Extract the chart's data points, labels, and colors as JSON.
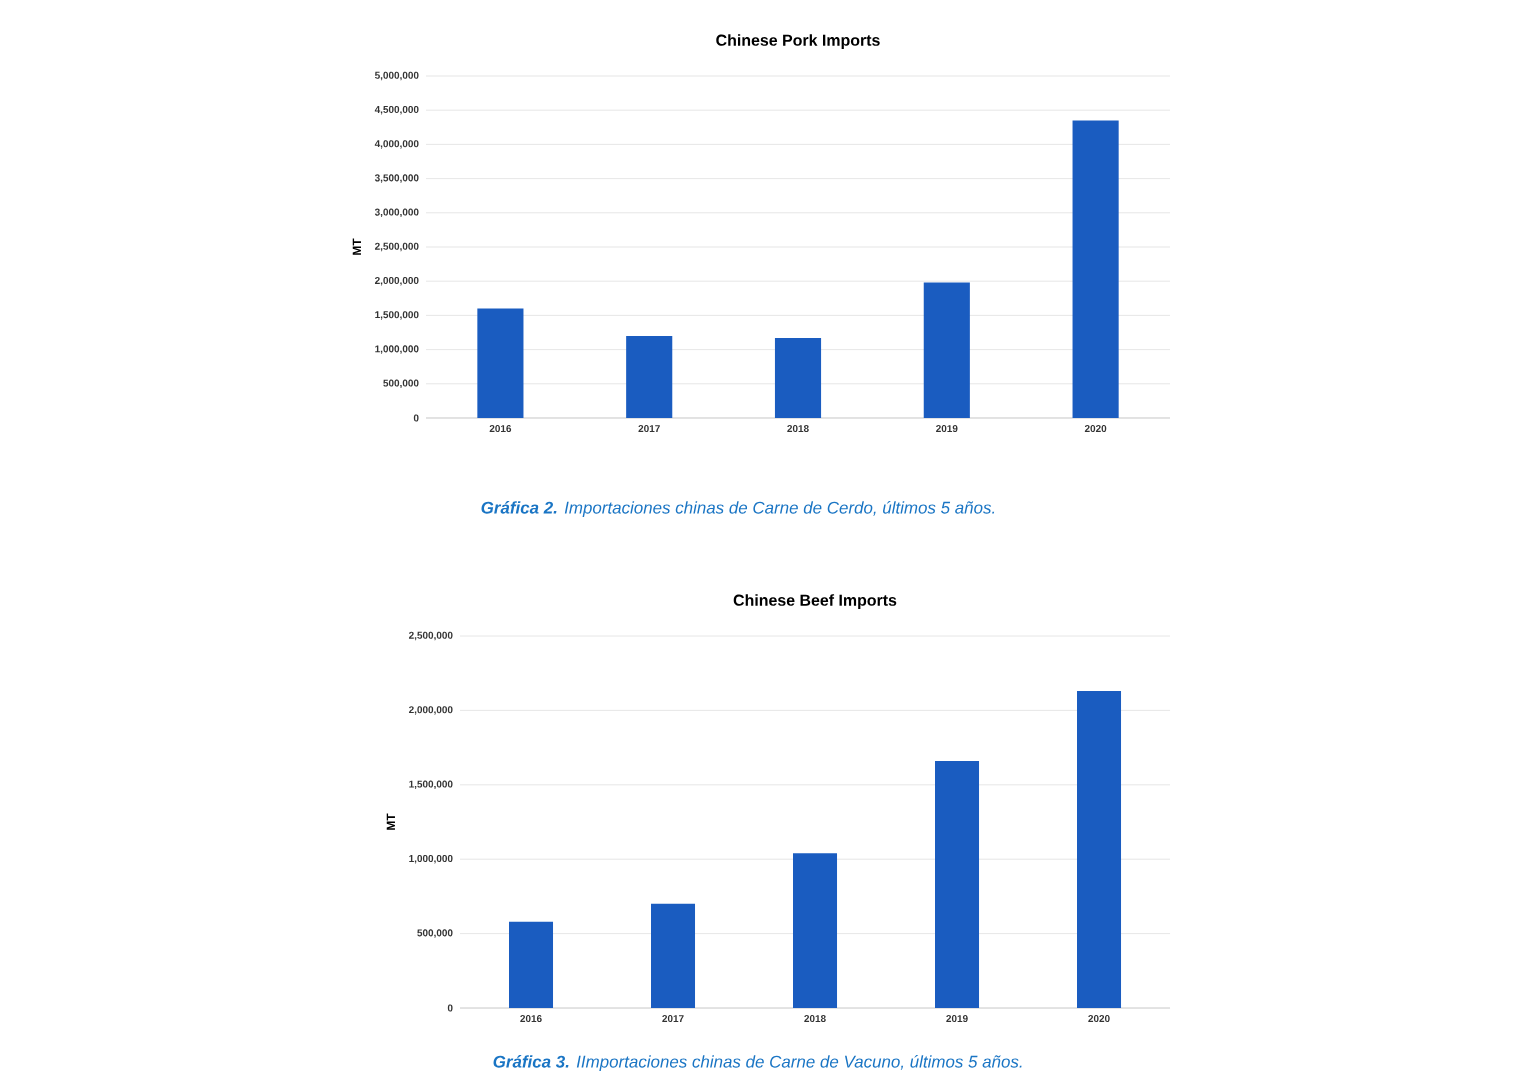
{
  "chart_data": [
    {
      "type": "bar",
      "title": "Chinese Pork Imports",
      "ylabel": "MT",
      "categories": [
        "2016",
        "2017",
        "2018",
        "2019",
        "2020"
      ],
      "values": [
        1600000,
        1200000,
        1170000,
        1980000,
        4350000
      ],
      "color": "#1a5cc0",
      "ylim": [
        0,
        5000000
      ],
      "yticks": [
        {
          "value": 0,
          "label": "0"
        },
        {
          "value": 500000,
          "label": "500,000"
        },
        {
          "value": 1000000,
          "label": "1,000,000"
        },
        {
          "value": 1500000,
          "label": "1,500,000"
        },
        {
          "value": 2000000,
          "label": "2,000,000"
        },
        {
          "value": 2500000,
          "label": "2,500,000"
        },
        {
          "value": 3000000,
          "label": "3,000,000"
        },
        {
          "value": 3500000,
          "label": "3,500,000"
        },
        {
          "value": 4000000,
          "label": "4,000,000"
        },
        {
          "value": 4500000,
          "label": "4,500,000"
        },
        {
          "value": 5000000,
          "label": "5,000,000"
        }
      ],
      "grid": "y",
      "annotations": [
        "**Gráfica 2.** Importaciones chinas de Carne de Cerdo, últimos 5 años."
      ]
    },
    {
      "type": "bar",
      "title": "Chinese Beef Imports",
      "ylabel": "MT",
      "categories": [
        "2016",
        "2017",
        "2018",
        "2019",
        "2020"
      ],
      "values": [
        580000,
        700000,
        1040000,
        1660000,
        2130000
      ],
      "color": "#1a5cc0",
      "ylim": [
        0,
        2500000
      ],
      "yticks": [
        {
          "value": 0,
          "label": "0"
        },
        {
          "value": 500000,
          "label": "500,000"
        },
        {
          "value": 1000000,
          "label": "1,000,000"
        },
        {
          "value": 1500000,
          "label": "1,500,000"
        },
        {
          "value": 2000000,
          "label": "2,000,000"
        },
        {
          "value": 2500000,
          "label": "2,500,000"
        }
      ],
      "grid": "y",
      "annotations": [
        "**Gráfica 3.** IImportaciones chinas de Carne de Vacuno, últimos 5 años."
      ]
    }
  ]
}
